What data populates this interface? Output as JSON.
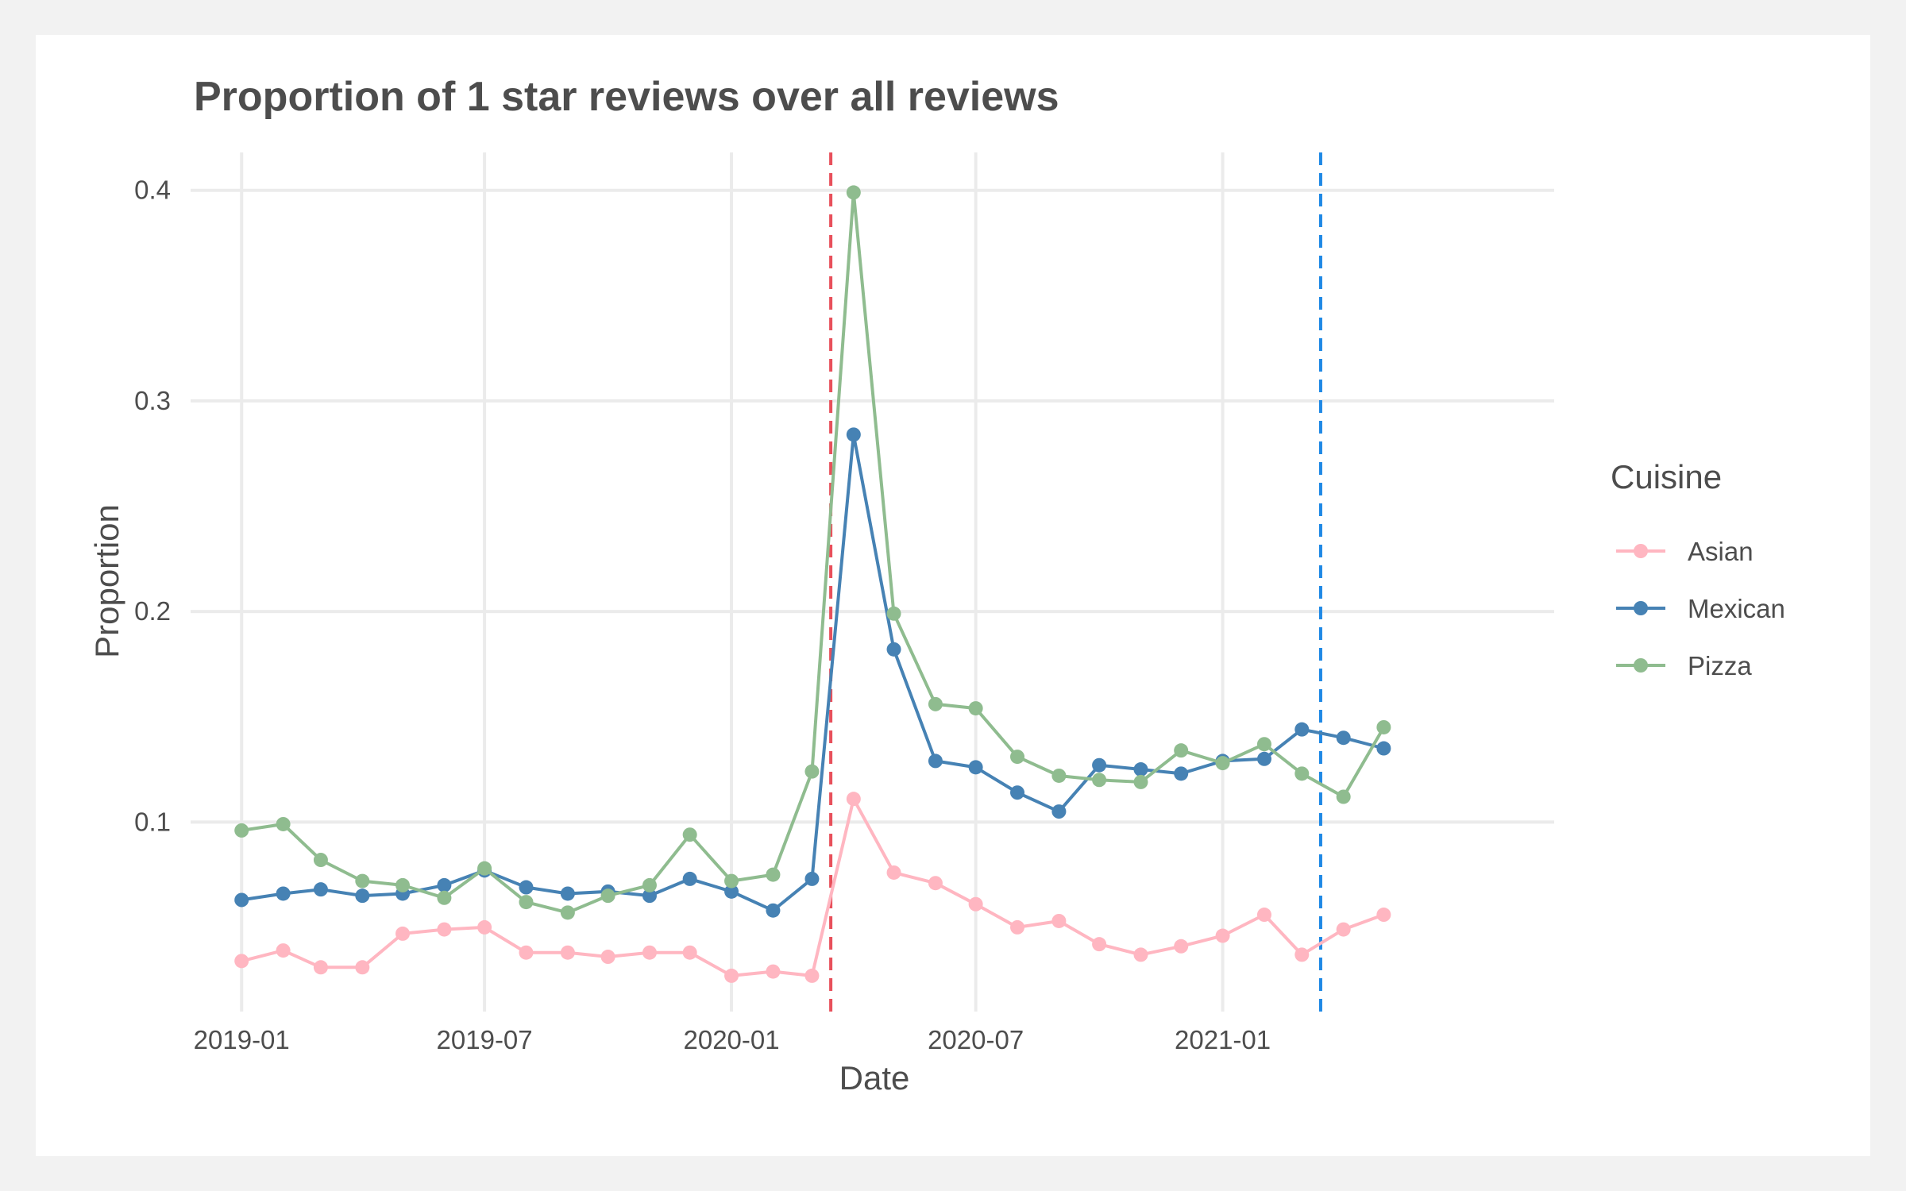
{
  "chart_data": {
    "type": "line",
    "title": "Proportion of 1 star reviews over all reviews",
    "xlabel": "Date",
    "ylabel": "Proportion",
    "x_tick_labels": [
      "2019-01",
      "2019-07",
      "2020-01",
      "2020-07",
      "2021-01"
    ],
    "y_tick_labels": [
      "0.1",
      "0.2",
      "0.3",
      "0.4"
    ],
    "y_ticks": [
      0.1,
      0.2,
      0.3,
      0.4
    ],
    "ylim": [
      0.01,
      0.418
    ],
    "xlim": [
      "2018-11-24",
      "2021-09-05"
    ],
    "grid": true,
    "legend": {
      "title": "Cuisine",
      "position": "right"
    },
    "x": [
      "2019-01-01",
      "2019-02-01",
      "2019-03-01",
      "2019-04-01",
      "2019-05-01",
      "2019-06-01",
      "2019-07-01",
      "2019-08-01",
      "2019-09-01",
      "2019-10-01",
      "2019-11-01",
      "2019-12-01",
      "2020-01-01",
      "2020-02-01",
      "2020-03-01",
      "2020-04-01",
      "2020-05-01",
      "2020-06-01",
      "2020-07-01",
      "2020-08-01",
      "2020-09-01",
      "2020-10-01",
      "2020-11-01",
      "2020-12-01",
      "2021-01-01",
      "2021-02-01",
      "2021-03-01",
      "2021-04-01",
      "2021-05-01"
    ],
    "series": [
      {
        "name": "Asian",
        "color": "#FFB6C1",
        "values": [
          0.034,
          0.039,
          0.031,
          0.031,
          0.047,
          0.049,
          0.05,
          0.038,
          0.038,
          0.036,
          0.038,
          0.038,
          0.027,
          0.029,
          0.027,
          0.111,
          0.076,
          0.071,
          0.061,
          0.05,
          0.053,
          0.042,
          0.037,
          0.041,
          0.046,
          0.056,
          0.037,
          0.049,
          0.056
        ]
      },
      {
        "name": "Mexican",
        "color": "#4682B4",
        "values": [
          0.063,
          0.066,
          0.068,
          0.065,
          0.066,
          0.07,
          0.077,
          0.069,
          0.066,
          0.067,
          0.065,
          0.073,
          0.067,
          0.058,
          0.073,
          0.284,
          0.182,
          0.129,
          0.126,
          0.114,
          0.105,
          0.127,
          0.125,
          0.123,
          0.129,
          0.13,
          0.144,
          0.14,
          0.135
        ]
      },
      {
        "name": "Pizza",
        "color": "#8FBC8F",
        "values": [
          0.096,
          0.099,
          0.082,
          0.072,
          0.07,
          0.064,
          0.078,
          0.062,
          0.057,
          0.065,
          0.07,
          0.094,
          0.072,
          0.075,
          0.124,
          0.399,
          0.199,
          0.156,
          0.154,
          0.131,
          0.122,
          0.12,
          0.119,
          0.134,
          0.128,
          0.137,
          0.123,
          0.112,
          0.145
        ]
      }
    ],
    "reference_lines": [
      {
        "x": "2020-03-15",
        "color": "#E8505B",
        "style": "dashed"
      },
      {
        "x": "2021-03-15",
        "color": "#1E88E5",
        "style": "dashed"
      }
    ]
  }
}
